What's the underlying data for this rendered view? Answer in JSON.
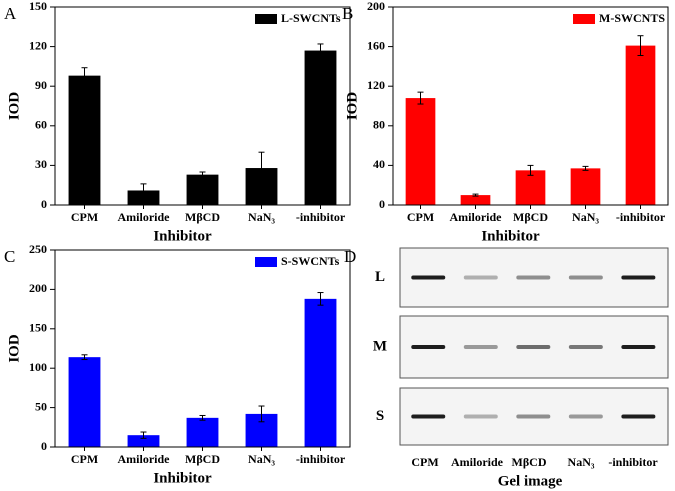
{
  "chart_data": [
    {
      "type": "bar",
      "panel_label": "A",
      "x_label": "Inhibitor",
      "y_label": "IOD",
      "categories": [
        "CPM",
        "Amiloride",
        "MβCD",
        "NaN₃",
        "-inhibitor"
      ],
      "series": [
        {
          "name": "L-SWCNTs",
          "color": "#000000",
          "values": [
            98,
            11,
            23,
            28,
            117
          ],
          "errors": [
            6,
            5,
            2,
            12,
            5
          ]
        }
      ],
      "ylim": [
        0,
        150
      ],
      "yticks": [
        0,
        30,
        60,
        90,
        120,
        150
      ],
      "legend": "upper right"
    },
    {
      "type": "bar",
      "panel_label": "B",
      "x_label": "Inhibitor",
      "y_label": "IOD",
      "categories": [
        "CPM",
        "Amiloride",
        "MβCD",
        "NaN₃",
        "-inhibitor"
      ],
      "series": [
        {
          "name": "M-SWCNTS",
          "color": "#ff0000",
          "values": [
            108,
            10,
            35,
            37,
            161
          ],
          "errors": [
            6,
            1,
            5,
            2,
            10
          ]
        }
      ],
      "ylim": [
        0,
        200
      ],
      "yticks": [
        0,
        40,
        80,
        120,
        160,
        200
      ],
      "legend": "upper right"
    },
    {
      "type": "bar",
      "panel_label": "C",
      "x_label": "Inhibitor",
      "y_label": "IOD",
      "categories": [
        "CPM",
        "Amiloride",
        "MβCD",
        "NaN₃",
        "-inhibitor"
      ],
      "series": [
        {
          "name": "S-SWCNTs",
          "color": "#0000ff",
          "values": [
            114,
            15,
            37,
            42,
            188
          ],
          "errors": [
            3,
            4,
            3,
            10,
            8
          ]
        }
      ],
      "ylim": [
        0,
        250
      ],
      "yticks": [
        0,
        50,
        100,
        150,
        200,
        250
      ],
      "legend": "upper right"
    }
  ],
  "gel_panel": {
    "panel_label": "D",
    "rows": [
      "L",
      "M",
      "S"
    ],
    "lanes": [
      "CPM",
      "Amiloride",
      "MβCD",
      "NaN₃",
      "-inhibitor"
    ],
    "caption": "Gel image"
  }
}
